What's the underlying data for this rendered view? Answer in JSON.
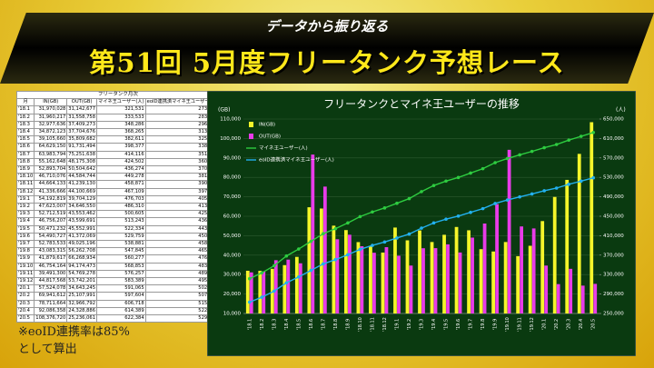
{
  "banner": {
    "subtitle": "データから振り返る",
    "title": "第51回 5月度フリータンク予想レース"
  },
  "table": {
    "title": "フリータンク月次",
    "columns": [
      "月",
      "IN(GB)",
      "OUT(GB)",
      "マイネ王ユーザー(人)",
      "eoID連携済マイネ王ユーザー(人)"
    ],
    "rows": [
      [
        "'18.1",
        "31,970,028",
        "31,142,677",
        "321,531",
        "273,301"
      ],
      [
        "'18.2",
        "31,960,217",
        "31,558,758",
        "333,533",
        "283,503"
      ],
      [
        "'18.3",
        "32,977,636",
        "37,409,273",
        "348,286",
        "296,043"
      ],
      [
        "'18.4",
        "34,872,123",
        "37,704,676",
        "368,265",
        "313,025"
      ],
      [
        "'18.5",
        "39,105,660",
        "35,809,682",
        "382,611",
        "325,219"
      ],
      [
        "'18.6",
        "64,629,150",
        "91,731,494",
        "398,377",
        "338,620"
      ],
      [
        "'18.7",
        "63,983,794",
        "75,251,638",
        "414,116",
        "351,998"
      ],
      [
        "'18.8",
        "55,162,648",
        "48,175,308",
        "424,502",
        "360,826"
      ],
      [
        "'18.9",
        "52,893,704",
        "50,504,642",
        "436,274",
        "370,832"
      ],
      [
        "'18.10",
        "46,710,076",
        "44,584,744",
        "449,278",
        "381,886"
      ],
      [
        "'18.11",
        "44,664,133",
        "41,239,130",
        "458,871",
        "390,040"
      ],
      [
        "'18.12",
        "41,336,666",
        "44,100,669",
        "467,109",
        "397,042"
      ],
      [
        "'19.1",
        "54,192,819",
        "39,704,129",
        "476,703",
        "405,197"
      ],
      [
        "'19.2",
        "47,623,007",
        "34,646,550",
        "486,310",
        "413,363"
      ],
      [
        "'19.3",
        "52,712,519",
        "43,553,462",
        "500,605",
        "425,514"
      ],
      [
        "'19.4",
        "46,756,207",
        "43,599,691",
        "513,243",
        "436,256"
      ],
      [
        "'19.5",
        "50,471,232",
        "45,552,991",
        "522,334",
        "443,983"
      ],
      [
        "'19.6",
        "54,490,727",
        "41,372,069",
        "529,759",
        "450,295"
      ],
      [
        "'19.7",
        "52,783,533",
        "49,025,196",
        "538,881",
        "458,048"
      ],
      [
        "'19.8",
        "43,083,315",
        "56,262,708",
        "547,845",
        "465,668"
      ],
      [
        "'19.9",
        "41,879,617",
        "66,268,934",
        "560,277",
        "476,235"
      ],
      [
        "'19.10",
        "46,754,164",
        "94,174,473",
        "568,853",
        "483,525"
      ],
      [
        "'19.11",
        "39,491,300",
        "54,769,278",
        "576,257",
        "489,818"
      ],
      [
        "'19.12",
        "44,817,568",
        "53,742,201",
        "583,389",
        "495,880"
      ],
      [
        "'20.1",
        "57,524,078",
        "34,643,245",
        "591,065",
        "502,405"
      ],
      [
        "'20.2",
        "69,941,612",
        "25,107,991",
        "597,604",
        "507,963"
      ],
      [
        "'20.3",
        "78,711,664",
        "32,966,792",
        "606,718",
        "515,710"
      ],
      [
        "'20.4",
        "92,086,358",
        "24,328,886",
        "614,389",
        "522,230"
      ],
      [
        "'20.5",
        "108,376,720",
        "25,236,061",
        "622,384",
        "529,026"
      ]
    ]
  },
  "note": [
    "※eoID連携率は85%",
    "として算出"
  ],
  "chart_data": {
    "type": "bar",
    "title": "フリータンクとマイネ王ユーザーの推移",
    "y_label": "(GB)",
    "y2_label": "(人)",
    "categories": [
      "'18.1",
      "'18.2",
      "'18.3",
      "'18.4",
      "'18.5",
      "'18.6",
      "'18.7",
      "'18.8",
      "'18.9",
      "'18.10",
      "'18.11",
      "'18.12",
      "'19.1",
      "'19.2",
      "'19.3",
      "'19.4",
      "'19.5",
      "'19.6",
      "'19.7",
      "'19.8",
      "'19.9",
      "'19.10",
      "'19.11",
      "'19.12",
      "'20.1",
      "'20.2",
      "'20.3",
      "'20.4",
      "'20.5"
    ],
    "ylim": [
      10000,
      110000
    ],
    "yticks": [
      {
        "value": 10000,
        "label": "10,000"
      },
      {
        "value": 20000,
        "label": "20,000"
      },
      {
        "value": 30000,
        "label": "30,000"
      },
      {
        "value": 40000,
        "label": "40,000"
      },
      {
        "value": 50000,
        "label": "50,000"
      },
      {
        "value": 60000,
        "label": "60,000"
      },
      {
        "value": 70000,
        "label": "70,000"
      },
      {
        "value": 80000,
        "label": "80,000"
      },
      {
        "value": 90000,
        "label": "90,000"
      },
      {
        "value": 100000,
        "label": "100,000"
      },
      {
        "value": 110000,
        "label": "110,000"
      }
    ],
    "y2lim": [
      250000,
      650000
    ],
    "y2ticks": [
      {
        "value": 250000,
        "label": "250,000"
      },
      {
        "value": 290000,
        "label": "290,000"
      },
      {
        "value": 330000,
        "label": "330,000"
      },
      {
        "value": 370000,
        "label": "370,000"
      },
      {
        "value": 410000,
        "label": "410,000"
      },
      {
        "value": 450000,
        "label": "450,000"
      },
      {
        "value": 490000,
        "label": "490,000"
      },
      {
        "value": 530000,
        "label": "530,000"
      },
      {
        "value": 570000,
        "label": "570,000"
      },
      {
        "value": 610000,
        "label": "610,000"
      },
      {
        "value": 650000,
        "label": "650,000"
      }
    ],
    "grid": true,
    "series": [
      {
        "name": "IN(GB)",
        "type": "bar",
        "color": "#f5f52a",
        "values": [
          31970,
          31960,
          32978,
          34872,
          39106,
          64629,
          63984,
          55163,
          52894,
          46710,
          44664,
          41337,
          54193,
          47623,
          52713,
          46756,
          50471,
          54491,
          52784,
          43083,
          41880,
          46754,
          39491,
          44818,
          57524,
          69942,
          78712,
          92086,
          108377
        ]
      },
      {
        "name": "OUT(GB)",
        "type": "bar",
        "color": "#e83ce8",
        "values": [
          31143,
          31559,
          37409,
          37705,
          35810,
          91731,
          75252,
          48175,
          50505,
          44585,
          41239,
          44101,
          39704,
          34647,
          43553,
          43600,
          45553,
          41372,
          49025,
          56263,
          66269,
          94174,
          54769,
          53742,
          34643,
          25108,
          32967,
          24329,
          25236
        ]
      },
      {
        "name": "マイネ王ユーザー(人)",
        "type": "line",
        "axis": "y2",
        "color": "#2ecc40",
        "values": [
          321531,
          333533,
          348286,
          368265,
          382611,
          398377,
          414116,
          424502,
          436274,
          449278,
          458871,
          467109,
          476703,
          486310,
          500605,
          513243,
          522334,
          529759,
          538881,
          547845,
          560277,
          568853,
          576257,
          583389,
          591065,
          597604,
          606718,
          614389,
          622384
        ]
      },
      {
        "name": "eoID連携済マイネ王ユーザー(人)",
        "type": "line",
        "axis": "y2",
        "color": "#22b0ee",
        "values": [
          273301,
          283503,
          296043,
          313025,
          325219,
          338620,
          351998,
          360826,
          370832,
          381886,
          390040,
          397042,
          405197,
          413363,
          425514,
          436256,
          443983,
          450295,
          458048,
          465668,
          476235,
          483525,
          489818,
          495880,
          502405,
          507963,
          515710,
          522230,
          529026
        ]
      }
    ]
  }
}
